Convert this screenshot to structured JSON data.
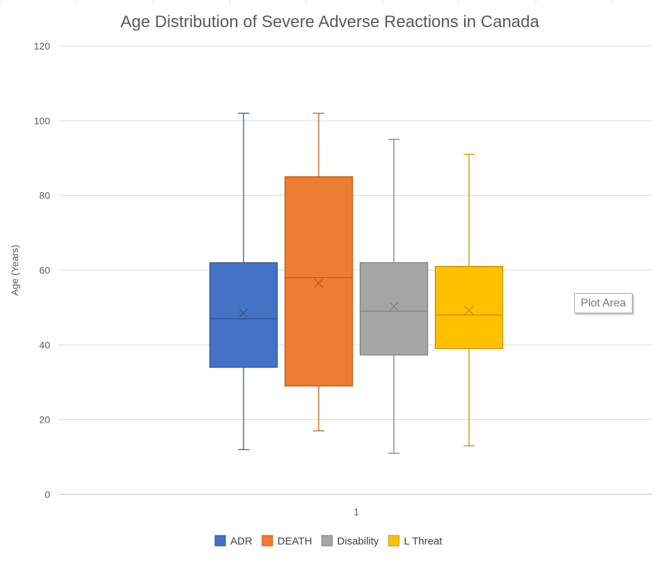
{
  "chart_data": {
    "type": "box",
    "title": "Age Distribution of Severe Adverse Reactions in Canada",
    "ylabel": "Age (Years)",
    "xlabel": "",
    "categories": [
      "1"
    ],
    "ylim": [
      0,
      120
    ],
    "yticks": [
      0,
      20,
      40,
      60,
      80,
      100,
      120
    ],
    "grid": true,
    "legend_position": "bottom",
    "series": [
      {
        "name": "ADR",
        "color": "#4472C4",
        "stroke": "#2F5597",
        "min": 12,
        "q1": 34,
        "median": 47,
        "q3": 62,
        "max": 102,
        "mean": 48.5
      },
      {
        "name": "DEATH",
        "color": "#ED7D31",
        "stroke": "#C55A11",
        "min": 17,
        "q1": 29,
        "median": 58,
        "q3": 85,
        "max": 102,
        "mean": 56.5
      },
      {
        "name": "Disability",
        "color": "#A5A5A5",
        "stroke": "#7F7F7F",
        "min": 11,
        "q1": 37.3,
        "median": 49,
        "q3": 62,
        "max": 95,
        "mean": 50.3
      },
      {
        "name": "L Threat",
        "color": "#FFC000",
        "stroke": "#BF9000",
        "min": 13,
        "q1": 39,
        "median": 48,
        "q3": 61,
        "max": 91,
        "mean": 49.2
      }
    ]
  },
  "tooltip": {
    "text": "Plot Area"
  }
}
